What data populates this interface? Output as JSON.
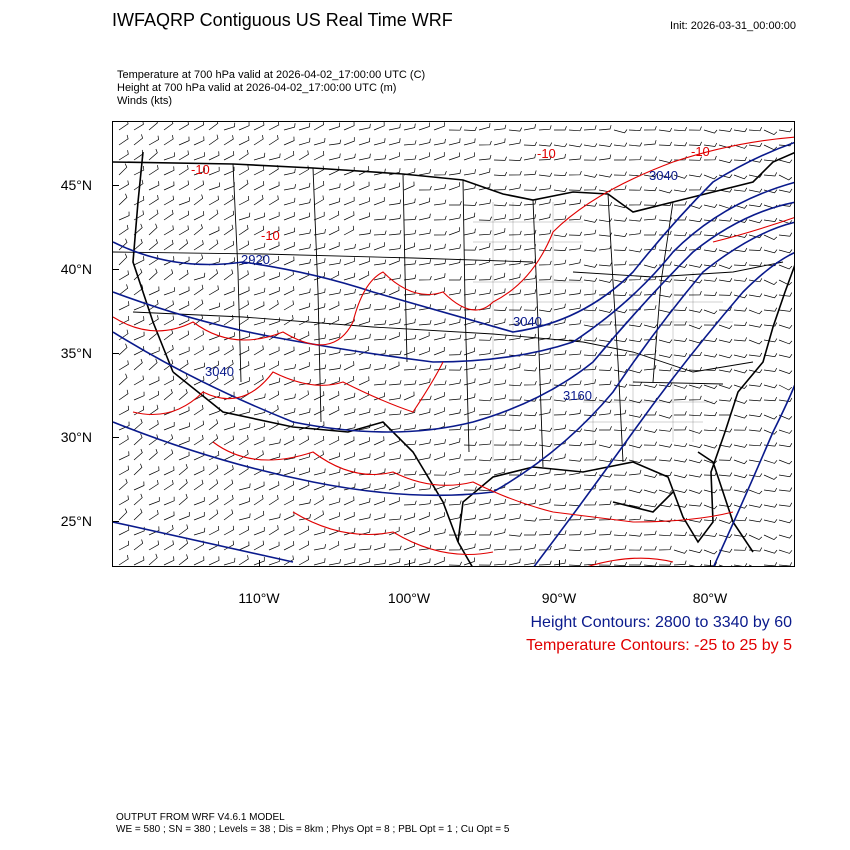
{
  "header": {
    "title": "IWFAQRP Contiguous US Real Time WRF",
    "init": "Init: 2026-03-31_00:00:00"
  },
  "fields": [
    "Temperature at 700 hPa valid at 2026-04-02_17:00:00 UTC   (C)",
    "Height at 700 hPa valid at 2026-04-02_17:00:00 UTC   (m)",
    "Winds   (kts)"
  ],
  "map": {
    "lat_labels": [
      "45°N",
      "40°N",
      "35°N",
      "30°N",
      "25°N"
    ],
    "lon_labels": [
      "110°W",
      "100°W",
      "90°W",
      "80°W"
    ],
    "height_contour_labels": [
      "3040",
      "2920",
      "3040",
      "3040",
      "3160"
    ],
    "temp_contour_labels": [
      "-10",
      "-10",
      "-10",
      "-10"
    ],
    "colors": {
      "height": "#0a1a8c",
      "temperature": "#e00000",
      "boundaries": "#000000",
      "barbs": "#000000"
    }
  },
  "legend": {
    "height": "Height Contours: 2800 to 3340 by 60",
    "temperature": "Temperature Contours: -25 to 25 by 5"
  },
  "footer": {
    "line1": "OUTPUT FROM WRF V4.6.1 MODEL",
    "line2": "WE = 580 ; SN = 380 ; Levels = 38 ; Dis = 8km ; Phys Opt = 8 ; PBL Opt = 1 ; Cu Opt = 5"
  }
}
